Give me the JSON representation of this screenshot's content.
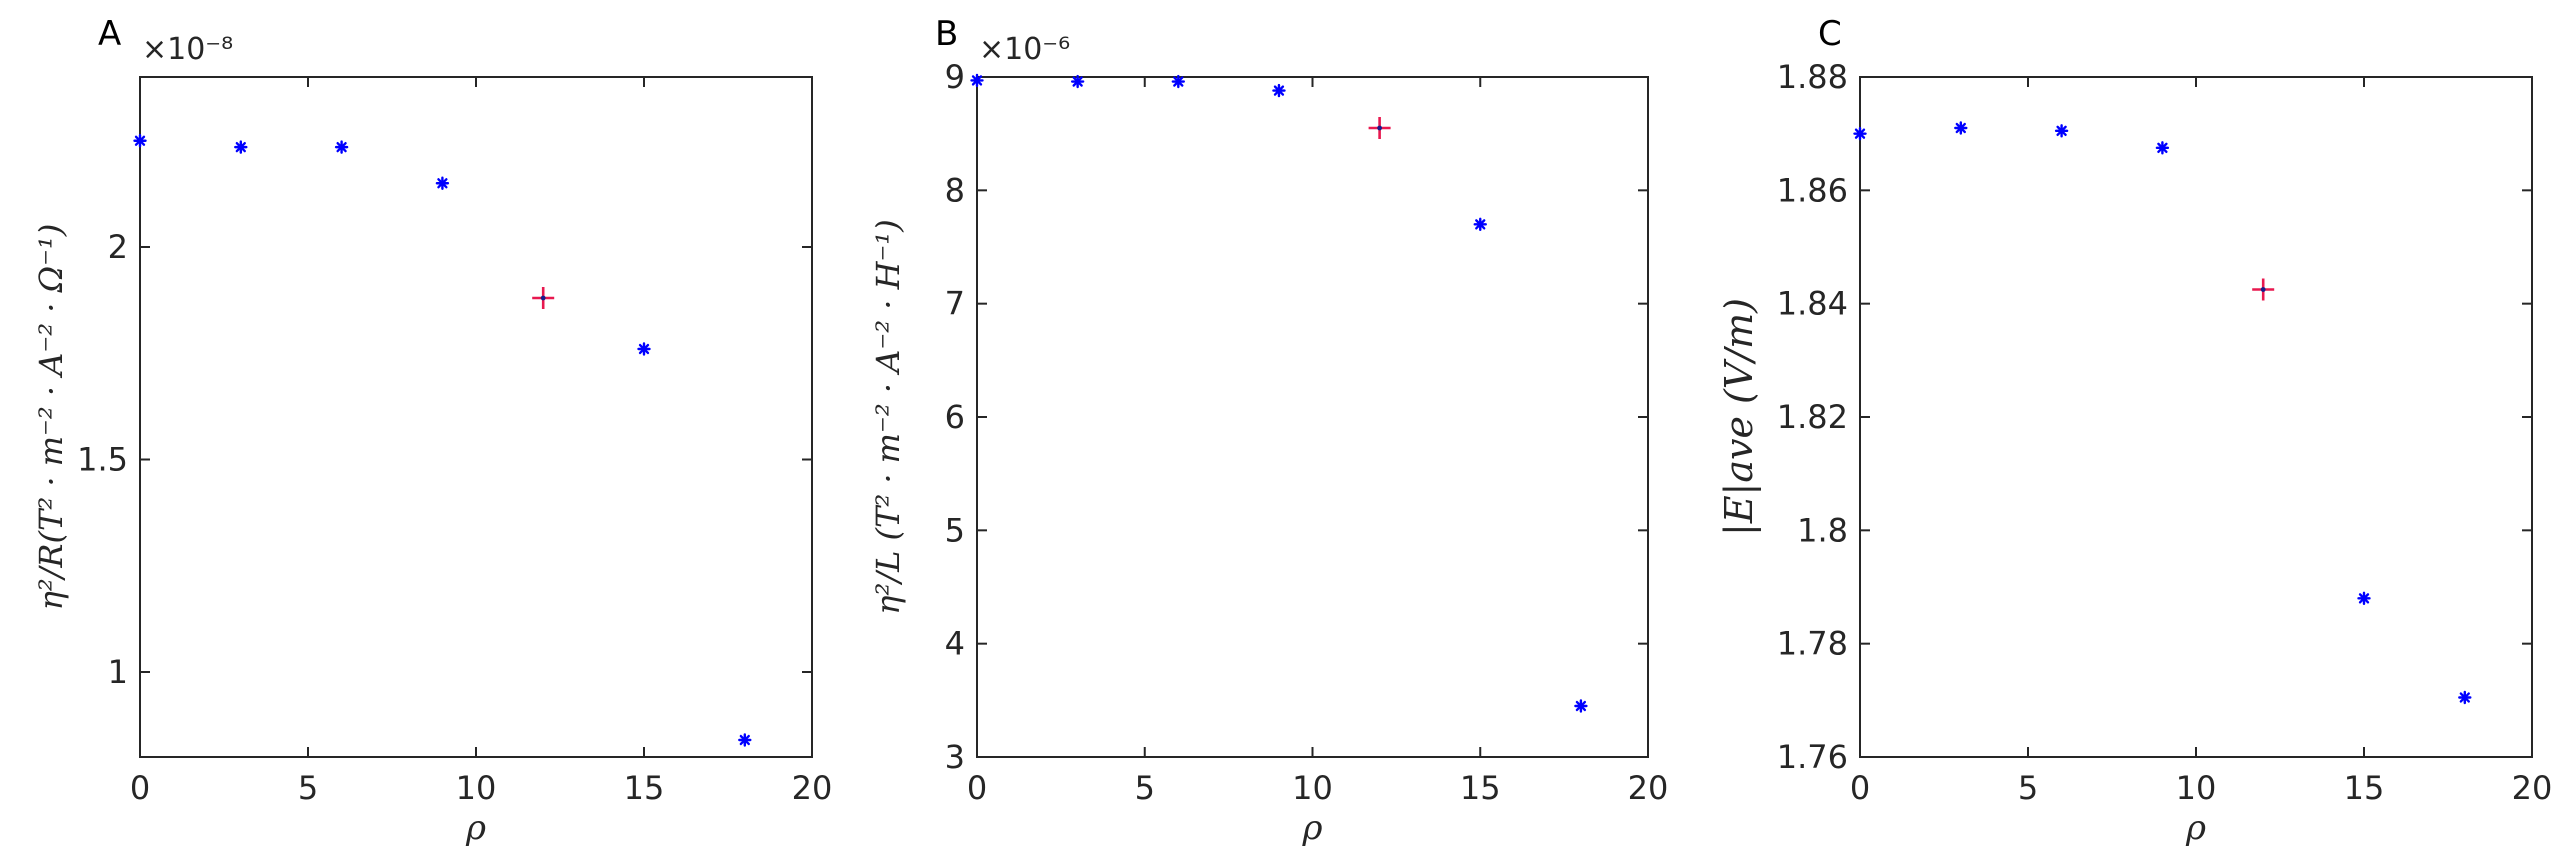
{
  "chart_data": [
    {
      "type": "scatter",
      "panel_letter": "A",
      "exponent_label": "×10⁻⁸",
      "xlabel": "ρ",
      "ylabel": "η²/R(T² · m⁻² · A⁻² · Ω⁻¹)",
      "xlim": [
        0,
        20
      ],
      "ylim": [
        0.8,
        2.4
      ],
      "xticks": [
        0,
        5,
        10,
        15,
        20
      ],
      "yticks": [
        1,
        1.5,
        2
      ],
      "ytick_labels": [
        "1",
        "1.5",
        "2"
      ],
      "grid": false,
      "series": [
        {
          "marker": "asterisk",
          "color": "#0000ff",
          "x": [
            0,
            3,
            6,
            9,
            15,
            18
          ],
          "y": [
            2.25,
            2.235,
            2.235,
            2.15,
            1.76,
            0.84
          ]
        },
        {
          "marker": "plus",
          "color": "#e8184f",
          "x": [
            12
          ],
          "y": [
            1.88
          ]
        }
      ]
    },
    {
      "type": "scatter",
      "panel_letter": "B",
      "exponent_label": "×10⁻⁶",
      "xlabel": "ρ",
      "ylabel": "η²/L (T² · m⁻² · A⁻² · H⁻¹)",
      "xlim": [
        0,
        20
      ],
      "ylim": [
        3,
        9
      ],
      "xticks": [
        0,
        5,
        10,
        15,
        20
      ],
      "yticks": [
        3,
        4,
        5,
        6,
        7,
        8,
        9
      ],
      "ytick_labels": [
        "3",
        "4",
        "5",
        "6",
        "7",
        "8",
        "9"
      ],
      "grid": false,
      "series": [
        {
          "marker": "asterisk",
          "color": "#0000ff",
          "x": [
            0,
            3,
            6,
            9,
            15,
            18
          ],
          "y": [
            8.97,
            8.96,
            8.96,
            8.88,
            7.7,
            3.45
          ]
        },
        {
          "marker": "plus",
          "color": "#e8184f",
          "x": [
            12
          ],
          "y": [
            8.55
          ]
        }
      ]
    },
    {
      "type": "scatter",
      "panel_letter": "C",
      "exponent_label": "",
      "xlabel": "ρ",
      "ylabel": "|E|ave (V/m)",
      "xlim": [
        0,
        20
      ],
      "ylim": [
        1.76,
        1.88
      ],
      "xticks": [
        0,
        5,
        10,
        15,
        20
      ],
      "yticks": [
        1.76,
        1.78,
        1.8,
        1.82,
        1.84,
        1.86,
        1.88
      ],
      "ytick_labels": [
        "1.76",
        "1.78",
        "1.8",
        "1.82",
        "1.84",
        "1.86",
        "1.88"
      ],
      "grid": false,
      "series": [
        {
          "marker": "asterisk",
          "color": "#0000ff",
          "x": [
            0,
            3,
            6,
            9,
            15,
            18
          ],
          "y": [
            1.87,
            1.871,
            1.8705,
            1.8675,
            1.788,
            1.7705
          ]
        },
        {
          "marker": "plus",
          "color": "#e8184f",
          "x": [
            12
          ],
          "y": [
            1.8425
          ]
        }
      ]
    }
  ]
}
